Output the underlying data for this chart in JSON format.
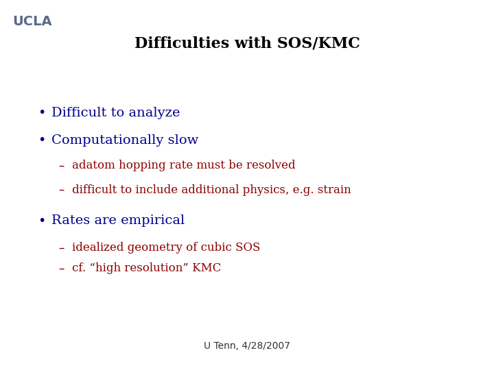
{
  "title": "Difficulties with SOS/KMC",
  "title_color": "#000000",
  "title_fontsize": 16,
  "slide_bg": "#ffffff",
  "ucla_text": "UCLA",
  "ucla_color": "#5a6a8a",
  "ucla_fontsize": 14,
  "footer_text": "U Tenn, 4/28/2007",
  "footer_color": "#333333",
  "footer_fontsize": 10,
  "bullet_color": "#00008b",
  "sub_bullet_color": "#8b0000",
  "bullet_fontsize": 14,
  "sub_bullet_fontsize": 12,
  "bullets": [
    {
      "text": "Difficult to analyze",
      "level": 0
    },
    {
      "text": "Computationally slow",
      "level": 0
    },
    {
      "text": "adatom hopping rate must be resolved",
      "level": 1
    },
    {
      "text": "difficult to include additional physics, e.g. strain",
      "level": 1
    },
    {
      "text": "Rates are empirical",
      "level": 0
    },
    {
      "text": "idealized geometry of cubic SOS",
      "level": 1
    },
    {
      "text": "cf. “high resolution” KMC",
      "level": 1
    }
  ]
}
